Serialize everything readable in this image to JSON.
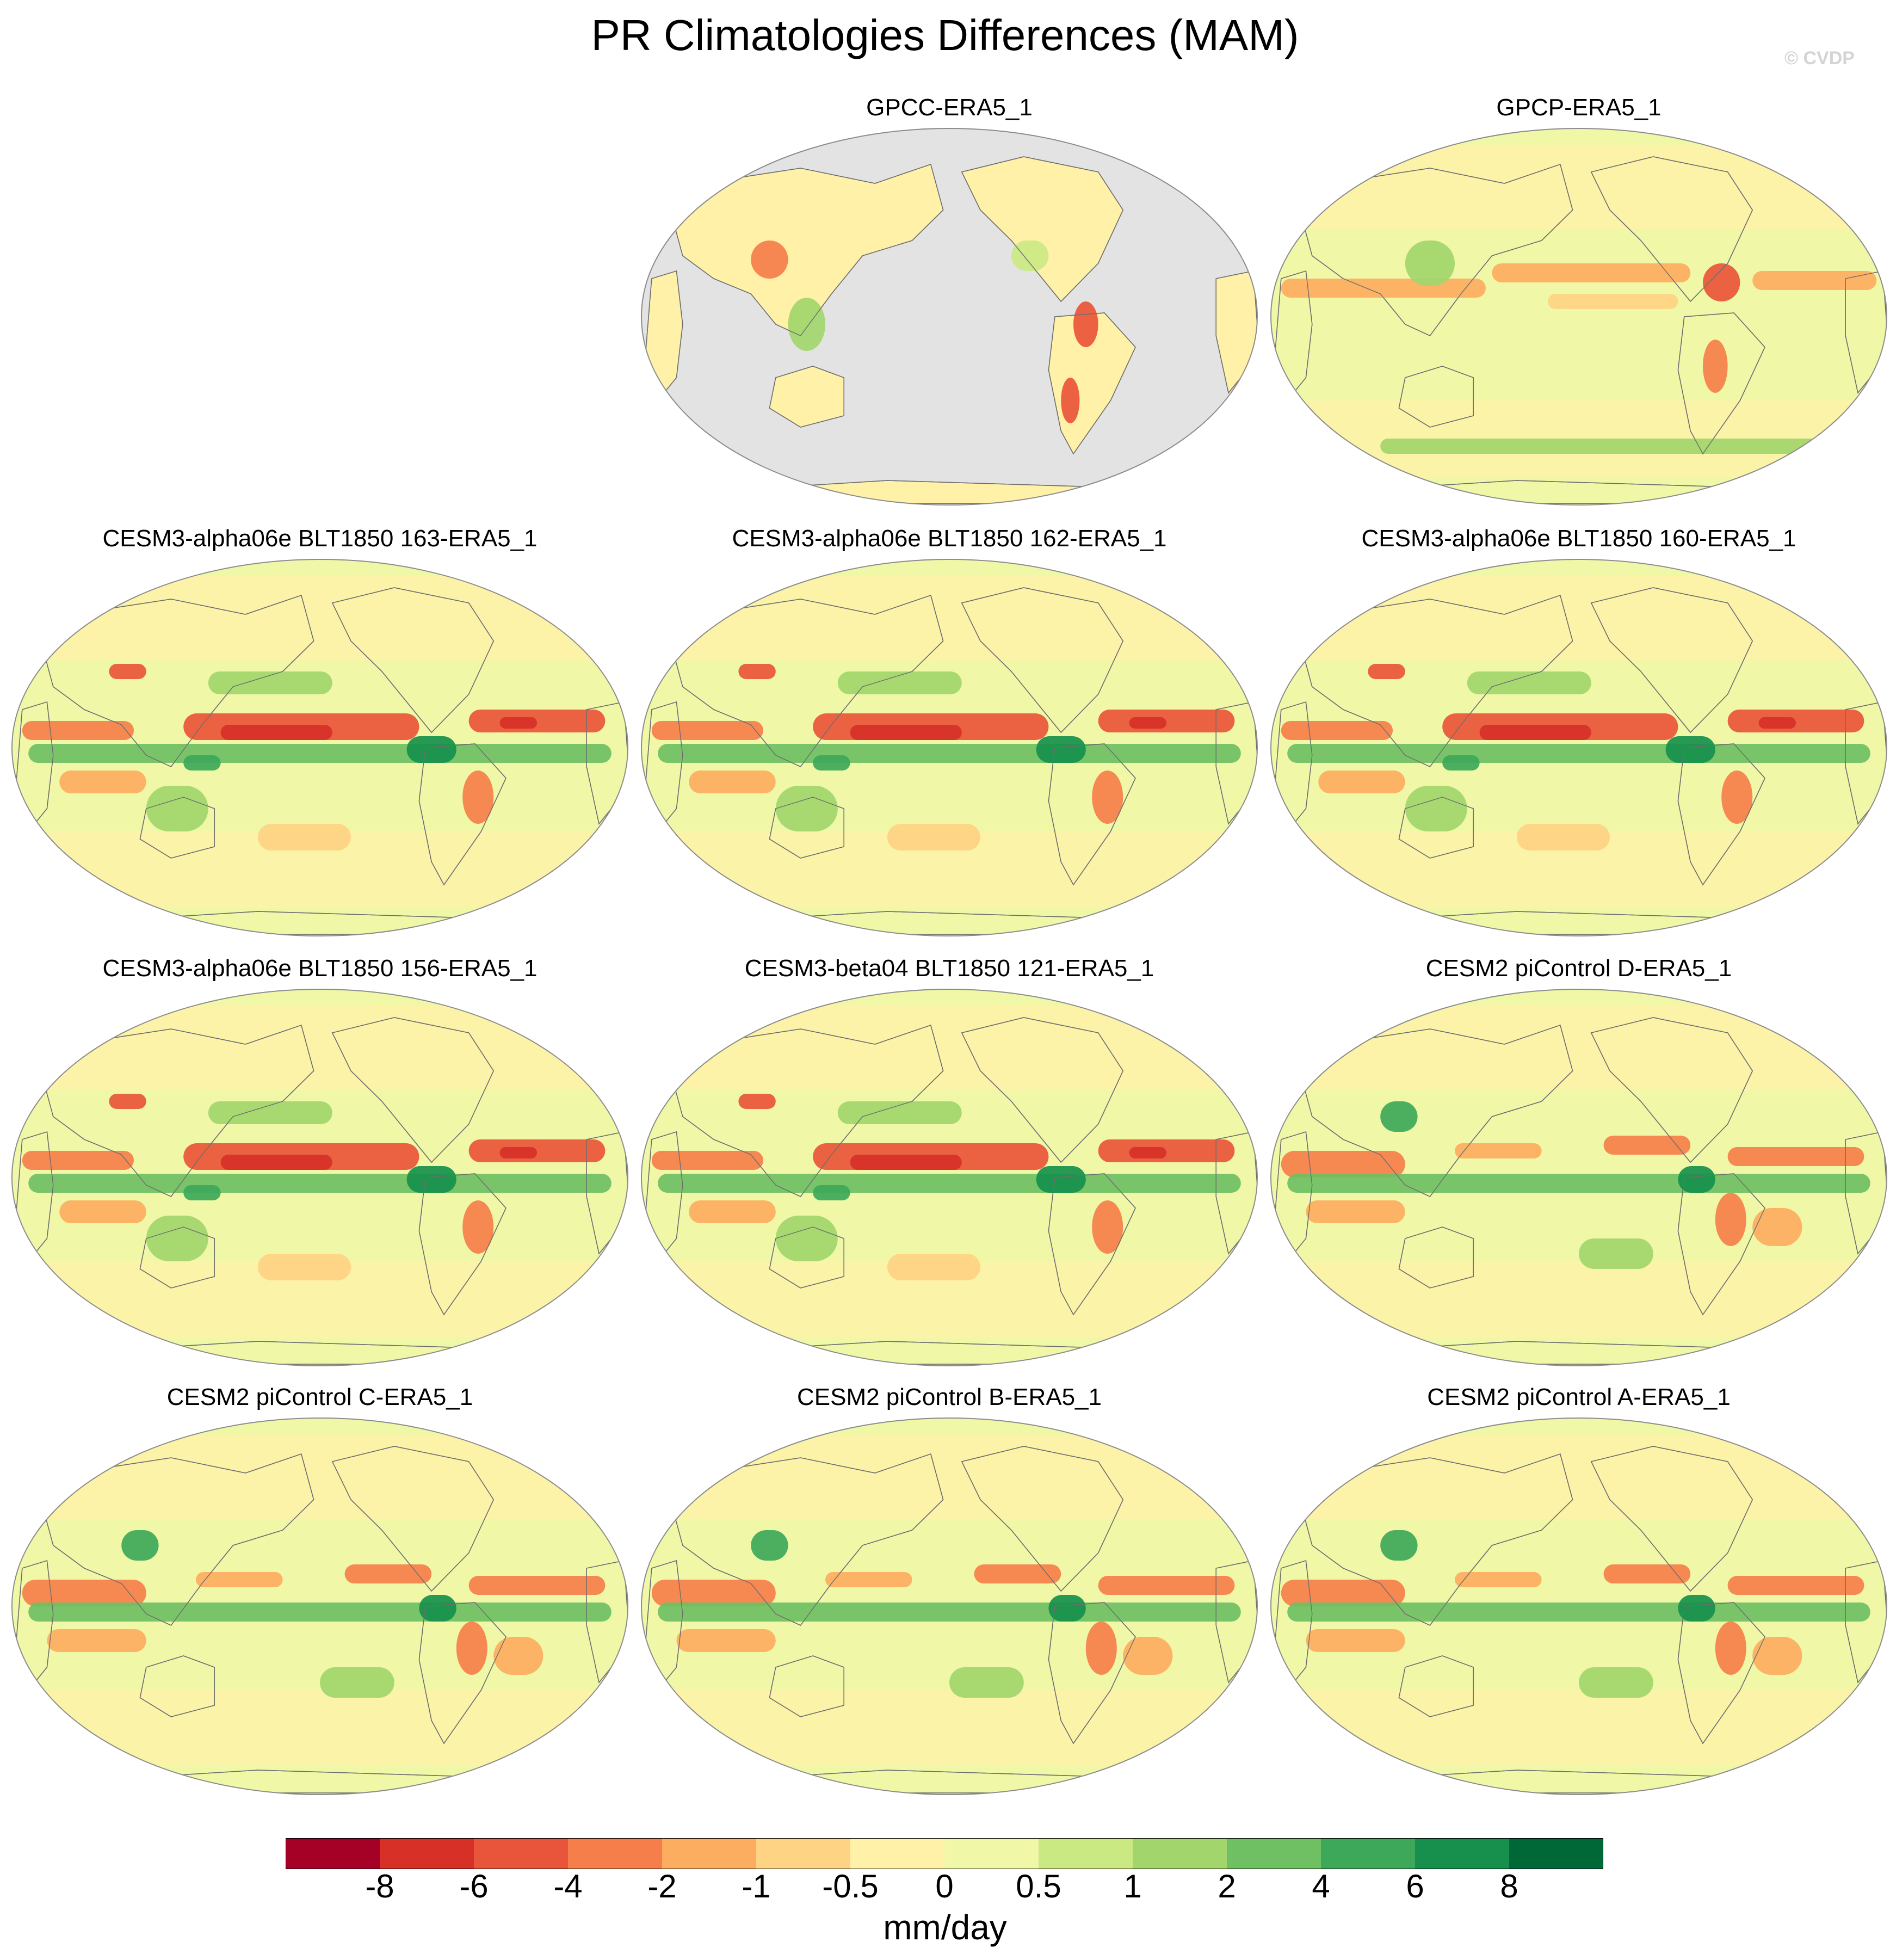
{
  "title": "PR Climatologies Differences (MAM)",
  "watermark": "© CVDP",
  "panels": [
    {
      "title": "GPCC-ERA5_1",
      "land_only": true,
      "pattern": "obs"
    },
    {
      "title": "GPCP-ERA5_1",
      "land_only": false,
      "pattern": "obs2"
    },
    {
      "title": "CESM3-alpha06e BLT1850 163-ERA5_1",
      "land_only": false,
      "pattern": "cesm3"
    },
    {
      "title": "CESM3-alpha06e BLT1850 162-ERA5_1",
      "land_only": false,
      "pattern": "cesm3"
    },
    {
      "title": "CESM3-alpha06e BLT1850 160-ERA5_1",
      "land_only": false,
      "pattern": "cesm3"
    },
    {
      "title": "CESM3-alpha06e BLT1850 156-ERA5_1",
      "land_only": false,
      "pattern": "cesm3"
    },
    {
      "title": "CESM3-beta04 BLT1850 121-ERA5_1",
      "land_only": false,
      "pattern": "cesm3"
    },
    {
      "title": "CESM2 piControl D-ERA5_1",
      "land_only": false,
      "pattern": "cesm2"
    },
    {
      "title": "CESM2 piControl C-ERA5_1",
      "land_only": false,
      "pattern": "cesm2"
    },
    {
      "title": "CESM2 piControl B-ERA5_1",
      "land_only": false,
      "pattern": "cesm2"
    },
    {
      "title": "CESM2 piControl A-ERA5_1",
      "land_only": false,
      "pattern": "cesm2"
    }
  ],
  "colorbar": {
    "units": "mm/day",
    "labels": [
      "-8",
      "-6",
      "-4",
      "-2",
      "-1",
      "-0.5",
      "0",
      "0.5",
      "1",
      "2",
      "4",
      "6",
      "8"
    ],
    "colors": [
      "#a50026",
      "#d73027",
      "#e9553a",
      "#f67e4b",
      "#fdad60",
      "#fed383",
      "#fff1a8",
      "#f0f8a8",
      "#cbe983",
      "#a2d66c",
      "#6fbf63",
      "#3ea85a",
      "#16904c",
      "#006837"
    ]
  },
  "chart_data": {
    "type": "heatmap",
    "title": "PR Climatologies Differences (MAM)",
    "projection": "Robinson, centered on the Pacific",
    "units": "mm/day",
    "contour_levels": [
      -8,
      -6,
      -4,
      -2,
      -1,
      -0.5,
      0,
      0.5,
      1,
      2,
      4,
      6,
      8
    ],
    "panel_titles": [
      "GPCC-ERA5_1",
      "GPCP-ERA5_1",
      "CESM3-alpha06e BLT1850 163-ERA5_1",
      "CESM3-alpha06e BLT1850 162-ERA5_1",
      "CESM3-alpha06e BLT1850 160-ERA5_1",
      "CESM3-alpha06e BLT1850 156-ERA5_1",
      "CESM3-beta04 BLT1850 121-ERA5_1",
      "CESM2 piControl D-ERA5_1",
      "CESM2 piControl C-ERA5_1",
      "CESM2 piControl B-ERA5_1",
      "CESM2 piControl A-ERA5_1"
    ]
  }
}
